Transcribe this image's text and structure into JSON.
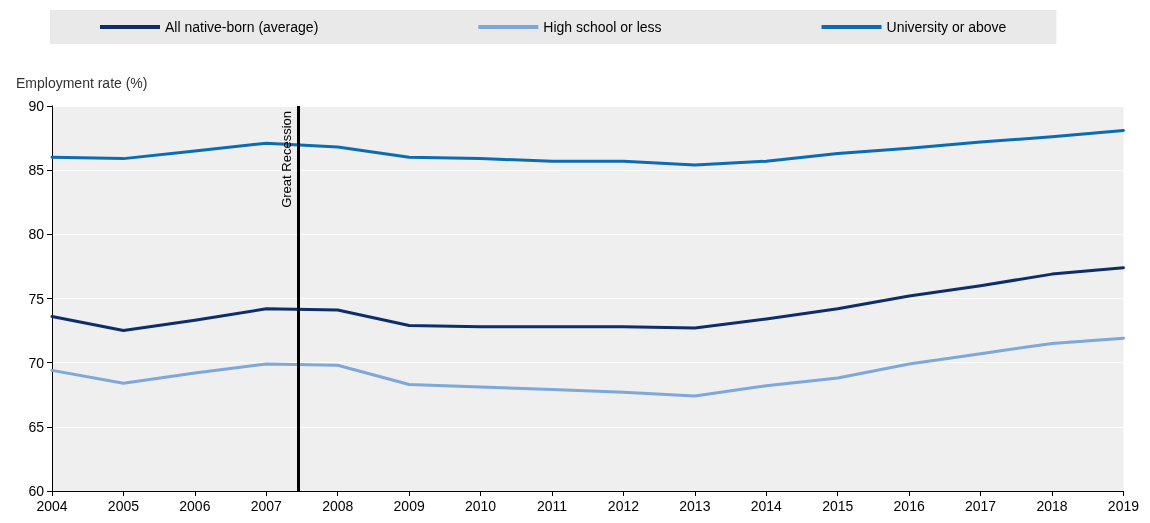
{
  "chart_data": {
    "type": "line",
    "ylabel": "Employment rate (%)",
    "x": [
      2004,
      2005,
      2006,
      2007,
      2008,
      2009,
      2010,
      2011,
      2012,
      2013,
      2014,
      2015,
      2016,
      2017,
      2018,
      2019
    ],
    "series": [
      {
        "name": "All native-born (average)",
        "color": "#0e2d6b",
        "values": [
          73.6,
          72.5,
          73.3,
          74.2,
          74.1,
          72.9,
          72.8,
          72.8,
          72.8,
          72.7,
          73.4,
          74.2,
          75.2,
          76.0,
          76.9,
          77.4
        ]
      },
      {
        "name": "High school or less",
        "color": "#7ea7dc",
        "values": [
          69.4,
          68.4,
          69.2,
          69.9,
          69.8,
          68.3,
          68.1,
          67.9,
          67.7,
          67.4,
          68.2,
          68.8,
          69.9,
          70.7,
          71.5,
          71.9
        ]
      },
      {
        "name": "University or above",
        "color": "#0b6bb5",
        "values": [
          86.0,
          85.9,
          86.5,
          87.1,
          86.8,
          86.0,
          85.9,
          85.7,
          85.7,
          85.4,
          85.7,
          86.3,
          86.7,
          87.2,
          87.6,
          88.1
        ]
      }
    ],
    "xlim": [
      2004,
      2019
    ],
    "xticks": [
      2004,
      2005,
      2006,
      2007,
      2008,
      2009,
      2010,
      2011,
      2012,
      2013,
      2014,
      2015,
      2016,
      2017,
      2018,
      2019
    ],
    "ylim": [
      60,
      90
    ],
    "yticks": [
      60,
      65,
      70,
      75,
      80,
      85,
      90
    ],
    "ref_lines": [
      {
        "axis": "x",
        "value": 2007.45,
        "label": "Great Recession",
        "color": "#000000"
      }
    ],
    "grid": "y",
    "legend": "top",
    "marker": "none",
    "line_style": "solid"
  }
}
